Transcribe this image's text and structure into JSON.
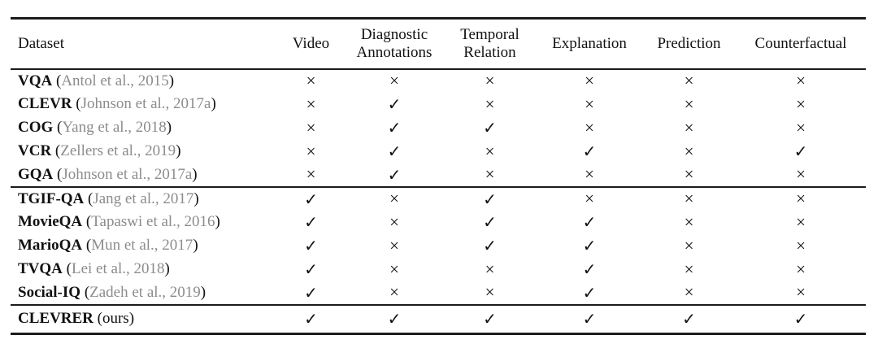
{
  "table": {
    "columns": [
      {
        "id": "dataset",
        "label": "Dataset"
      },
      {
        "id": "video",
        "label": "Video"
      },
      {
        "id": "diagnostic-annotations",
        "label": "Diagnostic Annotations"
      },
      {
        "id": "temporal-relation",
        "label": "Temporal Relation"
      },
      {
        "id": "explanation",
        "label": "Explanation"
      },
      {
        "id": "prediction",
        "label": "Prediction"
      },
      {
        "id": "counterfactual",
        "label": "Counterfactual"
      }
    ],
    "symbols": {
      "check": "✓",
      "cross": "×"
    },
    "colors": {
      "text": "#111111",
      "citation": "#8c8c8c",
      "rule": "#1c1c1c",
      "background": "#ffffff"
    },
    "groups": [
      {
        "rows": [
          {
            "name": "VQA",
            "citation": "(Antol et al., 2015)",
            "marks": [
              "cross",
              "cross",
              "cross",
              "cross",
              "cross",
              "cross"
            ]
          },
          {
            "name": "CLEVR",
            "citation": "(Johnson et al., 2017a)",
            "marks": [
              "cross",
              "check",
              "cross",
              "cross",
              "cross",
              "cross"
            ]
          },
          {
            "name": "COG",
            "citation": "(Yang et al., 2018)",
            "marks": [
              "cross",
              "check",
              "check",
              "cross",
              "cross",
              "cross"
            ]
          },
          {
            "name": "VCR",
            "citation": "(Zellers et al., 2019)",
            "marks": [
              "cross",
              "check",
              "cross",
              "check",
              "cross",
              "check"
            ]
          },
          {
            "name": "GQA",
            "citation": "(Johnson et al., 2017a)",
            "marks": [
              "cross",
              "check",
              "cross",
              "cross",
              "cross",
              "cross"
            ]
          }
        ]
      },
      {
        "rows": [
          {
            "name": "TGIF-QA",
            "citation": "(Jang et al., 2017)",
            "marks": [
              "check",
              "cross",
              "check",
              "cross",
              "cross",
              "cross"
            ]
          },
          {
            "name": "MovieQA",
            "citation": "(Tapaswi et al., 2016)",
            "marks": [
              "check",
              "cross",
              "check",
              "check",
              "cross",
              "cross"
            ]
          },
          {
            "name": "MarioQA",
            "citation": "(Mun et al., 2017)",
            "marks": [
              "check",
              "cross",
              "check",
              "check",
              "cross",
              "cross"
            ]
          },
          {
            "name": "TVQA",
            "citation": "(Lei et al., 2018)",
            "marks": [
              "check",
              "cross",
              "cross",
              "check",
              "cross",
              "cross"
            ]
          },
          {
            "name": "Social-IQ",
            "citation": "(Zadeh et al., 2019)",
            "marks": [
              "check",
              "cross",
              "cross",
              "check",
              "cross",
              "cross"
            ]
          }
        ]
      },
      {
        "rows": [
          {
            "name": "CLEVRER",
            "citation": "(ours)",
            "plain": true,
            "marks": [
              "check",
              "check",
              "check",
              "check",
              "check",
              "check"
            ]
          }
        ]
      }
    ]
  }
}
